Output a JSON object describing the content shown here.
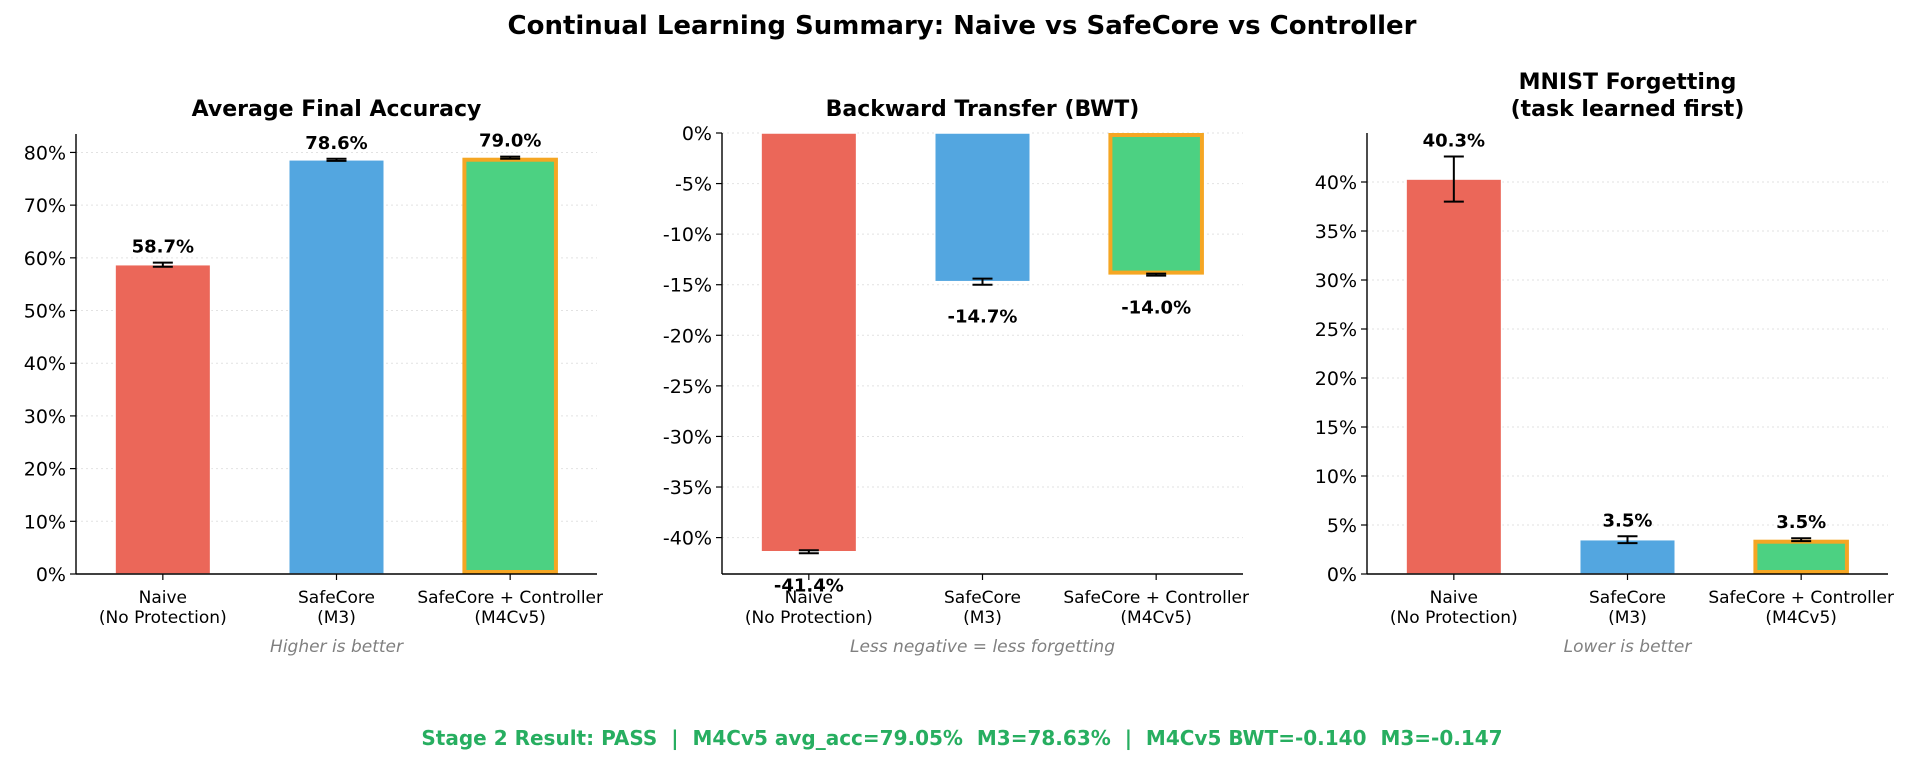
{
  "figure": {
    "title": "Continual Learning Summary: Naive vs SafeCore vs Controller",
    "footer": "Stage 2 Result: PASS  |  M4Cv5 avg_acc=79.05%  M3=78.63%  |  M4Cv5 BWT=-0.140  M3=-0.147",
    "footer_color": "#27ae60",
    "highlight_color": "#f5a623"
  },
  "chart_data": [
    {
      "type": "bar",
      "title": "Average Final Accuracy",
      "note": "Higher is better",
      "categories": [
        [
          "Naive",
          "(No Protection)"
        ],
        [
          "SafeCore",
          "(M3)"
        ],
        [
          "SafeCore + Controller",
          "(M4Cv5)"
        ]
      ],
      "values": [
        58.7,
        78.6,
        79.0
      ],
      "errors": [
        0.4,
        0.2,
        0.2
      ],
      "labels": [
        "58.7%",
        "78.6%",
        "79.0%"
      ],
      "colors": [
        "#eb6759",
        "#53a6e0",
        "#4cd182"
      ],
      "highlight": [
        false,
        false,
        true
      ],
      "ylim": [
        0,
        83.5
      ],
      "yticks": [
        0,
        10,
        20,
        30,
        40,
        50,
        60,
        70,
        80
      ],
      "ytick_labels": [
        "0%",
        "10%",
        "20%",
        "30%",
        "40%",
        "50%",
        "60%",
        "70%",
        "80%"
      ],
      "grid": "horizontal-dotted"
    },
    {
      "type": "bar",
      "title": "Backward Transfer (BWT)",
      "note": "Less negative = less forgetting",
      "categories": [
        [
          "Naive",
          "(No Protection)"
        ],
        [
          "SafeCore",
          "(M3)"
        ],
        [
          "SafeCore + Controller",
          "(M4Cv5)"
        ]
      ],
      "values": [
        -41.4,
        -14.7,
        -14.0
      ],
      "errors": [
        0.15,
        0.3,
        0.1
      ],
      "labels": [
        "-41.4%",
        "-14.7%",
        "-14.0%"
      ],
      "colors": [
        "#eb6759",
        "#53a6e0",
        "#4cd182"
      ],
      "highlight": [
        false,
        false,
        true
      ],
      "ylim": [
        -43.6,
        0
      ],
      "yticks": [
        0,
        -5,
        -10,
        -15,
        -20,
        -25,
        -30,
        -35,
        -40
      ],
      "ytick_labels": [
        "0%",
        "-5%",
        "-10%",
        "-15%",
        "-20%",
        "-25%",
        "-30%",
        "-35%",
        "-40%"
      ],
      "grid": "horizontal-dotted"
    },
    {
      "type": "bar",
      "title": [
        "MNIST Forgetting",
        "(task learned first)"
      ],
      "note": "Lower is better",
      "categories": [
        [
          "Naive",
          "(No Protection)"
        ],
        [
          "SafeCore",
          "(M3)"
        ],
        [
          "SafeCore + Controller",
          "(M4Cv5)"
        ]
      ],
      "values": [
        40.3,
        3.5,
        3.5
      ],
      "errors": [
        2.3,
        0.35,
        0.15
      ],
      "labels": [
        "40.3%",
        "3.5%",
        "3.5%"
      ],
      "colors": [
        "#eb6759",
        "#53a6e0",
        "#4cd182"
      ],
      "highlight": [
        false,
        false,
        true
      ],
      "ylim": [
        0,
        45
      ],
      "yticks": [
        0,
        5,
        10,
        15,
        20,
        25,
        30,
        35,
        40
      ],
      "ytick_labels": [
        "0%",
        "5%",
        "10%",
        "15%",
        "20%",
        "25%",
        "30%",
        "35%",
        "40%"
      ],
      "grid": "horizontal-dotted"
    }
  ]
}
